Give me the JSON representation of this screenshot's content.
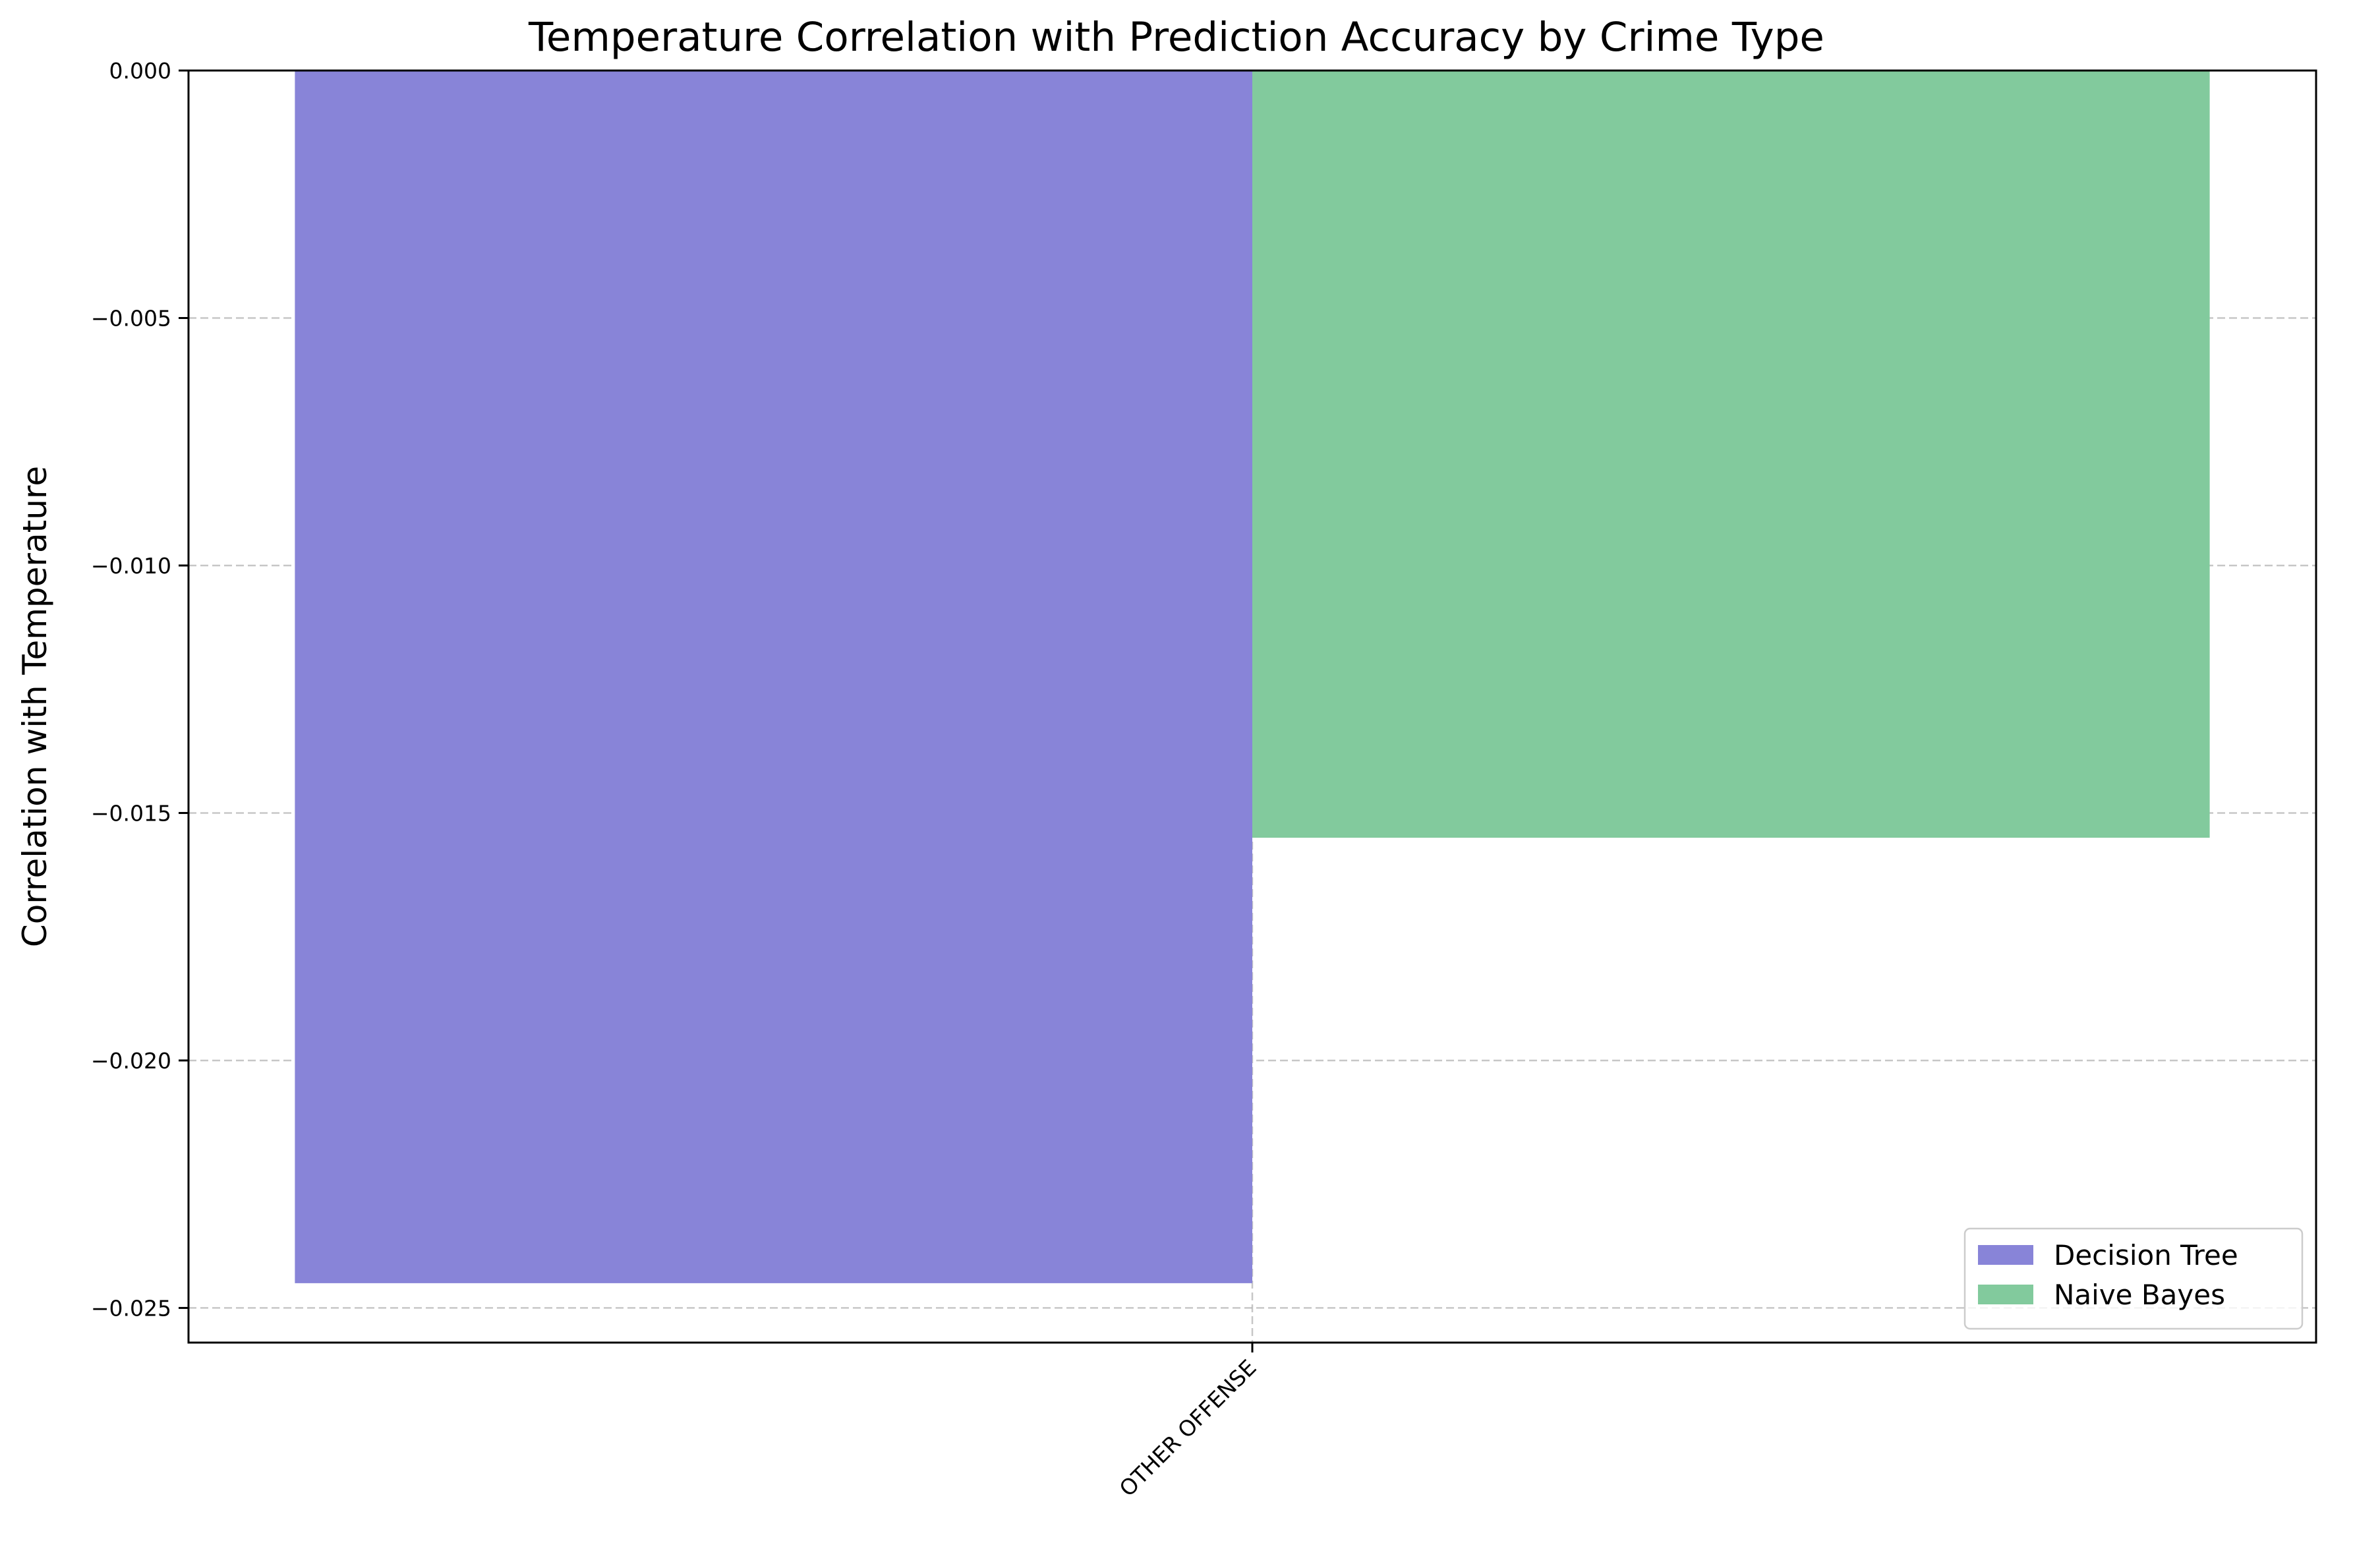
{
  "chart_data": {
    "type": "bar",
    "title": "Temperature Correlation with Prediction Accuracy by Crime Type",
    "xlabel": "",
    "ylabel": "Correlation with Temperature",
    "categories": [
      "OTHER OFFENSE"
    ],
    "series": [
      {
        "name": "Decision Tree",
        "values": [
          -0.0245
        ],
        "color": "#8884d8"
      },
      {
        "name": "Naive Bayes",
        "values": [
          -0.0155
        ],
        "color": "#82ca9d"
      }
    ],
    "ylim": [
      -0.0257,
      0.0
    ],
    "yticks": [
      0.0,
      -0.005,
      -0.01,
      -0.015,
      -0.02,
      -0.025
    ],
    "ytick_labels": [
      "0.000",
      "−0.005",
      "−0.010",
      "−0.015",
      "−0.020",
      "−0.025"
    ],
    "grid": true,
    "legend_position": "lower-right"
  }
}
